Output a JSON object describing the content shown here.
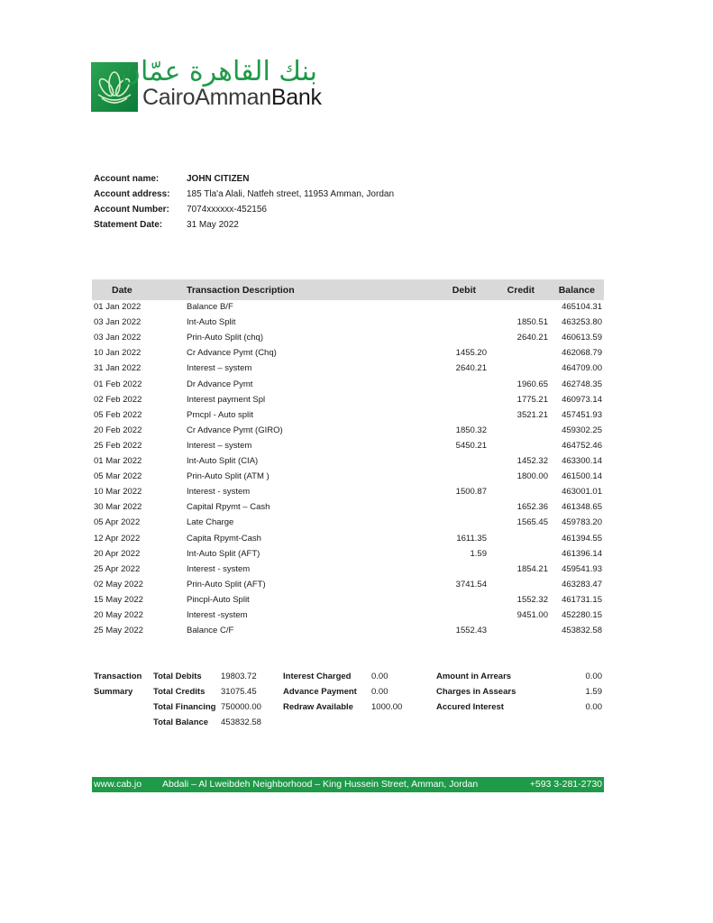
{
  "brand": {
    "name_en_1": "CairoAmman",
    "name_en_2": "Bank",
    "name_ar": "بنك القاهرة عمّان",
    "color": "#1e9a48"
  },
  "account": [
    {
      "label": "Account name:",
      "value": "JOHN CITIZEN"
    },
    {
      "label": "Account address:",
      "value": "185 Tla'a Alali, Natfeh street, 11953 Amman, Jordan"
    },
    {
      "label": "Account Number:",
      "value": "7074xxxxxx-452156"
    },
    {
      "label": "Statement Date:",
      "value": "31 May 2022"
    }
  ],
  "table": {
    "headers": {
      "date": "Date",
      "desc": "Transaction Description",
      "debit": "Debit",
      "credit": "Credit",
      "balance": "Balance"
    },
    "rows": [
      {
        "date": "01 Jan 2022",
        "desc": "Balance B/F",
        "debit": "",
        "credit": "",
        "balance": "465104.31"
      },
      {
        "date": "03 Jan 2022",
        "desc": "Int-Auto Split",
        "debit": "",
        "credit": "1850.51",
        "balance": "463253.80"
      },
      {
        "date": "03 Jan 2022",
        "desc": "Prin-Auto Split (chq)",
        "debit": "",
        "credit": "2640.21",
        "balance": "460613.59"
      },
      {
        "date": "10 Jan 2022",
        "desc": "Cr Advance Pymt (Chq)",
        "debit": "1455.20",
        "credit": "",
        "balance": "462068.79"
      },
      {
        "date": "31 Jan 2022",
        "desc": "Interest – system",
        "debit": "2640.21",
        "credit": "",
        "balance": "464709.00"
      },
      {
        "date": "01 Feb 2022",
        "desc": "Dr Advance Pymt",
        "debit": "",
        "credit": "1960.65",
        "balance": "462748.35"
      },
      {
        "date": "02 Feb 2022",
        "desc": "Interest payment Spl",
        "debit": "",
        "credit": "1775.21",
        "balance": "460973.14"
      },
      {
        "date": "05 Feb 2022",
        "desc": "Prncpl  - Auto split",
        "debit": "",
        "credit": "3521.21",
        "balance": "457451.93"
      },
      {
        "date": "20 Feb 2022",
        "desc": "Cr Advance Pymt (GIRO)",
        "debit": "1850.32",
        "credit": "",
        "balance": "459302.25"
      },
      {
        "date": "25 Feb 2022",
        "desc": "Interest – system",
        "debit": "5450.21",
        "credit": "",
        "balance": "464752.46"
      },
      {
        "date": "01 Mar 2022",
        "desc": "Int-Auto Split (CIA)",
        "debit": "",
        "credit": "1452.32",
        "balance": "463300.14"
      },
      {
        "date": "05 Mar 2022",
        "desc": "Prin-Auto Split (ATM )",
        "debit": "",
        "credit": "1800.00",
        "balance": "461500.14"
      },
      {
        "date": "10 Mar 2022",
        "desc": "Interest  - system",
        "debit": "1500.87",
        "credit": "",
        "balance": "463001.01"
      },
      {
        "date": "30 Mar 2022",
        "desc": "Capital Rpymt – Cash",
        "debit": "",
        "credit": "1652.36",
        "balance": "461348.65"
      },
      {
        "date": "05 Apr 2022",
        "desc": "Late Charge",
        "debit": "",
        "credit": "1565.45",
        "balance": "459783.20"
      },
      {
        "date": "12 Apr 2022",
        "desc": "Capita Rpymt-Cash",
        "debit": "1611.35",
        "credit": "",
        "balance": "461394.55"
      },
      {
        "date": "20 Apr 2022",
        "desc": "Int-Auto Split (AFT)",
        "debit": "1.59",
        "credit": "",
        "balance": "461396.14"
      },
      {
        "date": "25 Apr 2022",
        "desc": "Interest - system",
        "debit": "",
        "credit": "1854.21",
        "balance": "459541.93"
      },
      {
        "date": "02 May 2022",
        "desc": "Prin-Auto Split (AFT)",
        "debit": "3741.54",
        "credit": "",
        "balance": "463283.47"
      },
      {
        "date": "15 May 2022",
        "desc": "Pincpl-Auto Split",
        "debit": "",
        "credit": "1552.32",
        "balance": "461731.15"
      },
      {
        "date": "20 May 2022",
        "desc": "Interest -system",
        "debit": "",
        "credit": "9451.00",
        "balance": "452280.15"
      },
      {
        "date": "25 May 2022",
        "desc": "Balance C/F",
        "debit": "1552.43",
        "credit": "",
        "balance": "453832.58"
      }
    ]
  },
  "summary": {
    "title_1": "Transaction",
    "title_2": "Summary",
    "col1": [
      {
        "label": "Total Debits",
        "value": "19803.72"
      },
      {
        "label": "Total Credits",
        "value": "31075.45"
      },
      {
        "label": "Total Financing",
        "value": "750000.00"
      },
      {
        "label": "Total Balance",
        "value": "453832.58"
      }
    ],
    "col2": [
      {
        "label": "Interest Charged",
        "value": "0.00"
      },
      {
        "label": "Advance Payment",
        "value": "0.00"
      },
      {
        "label": "Redraw Available",
        "value": "1000.00"
      }
    ],
    "col3": [
      {
        "label": "Amount in Arrears",
        "value": "0.00"
      },
      {
        "label": "Charges in Assears",
        "value": "1.59"
      },
      {
        "label": "Accured Interest",
        "value": "0.00"
      }
    ]
  },
  "footer": {
    "website": "www.cab.jo",
    "address": "Abdali – Al Lweibdeh Neighborhood – King Hussein Street, Amman, Jordan",
    "phone": "+593 3-281-2730"
  }
}
